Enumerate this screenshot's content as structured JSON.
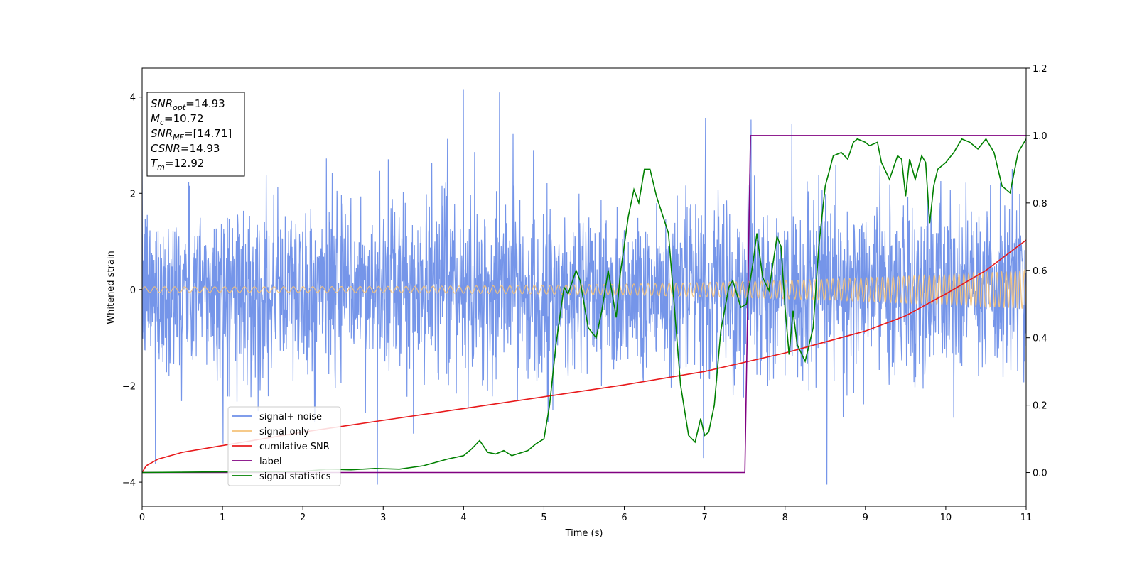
{
  "chart_data": {
    "type": "line",
    "xlabel": "Time (s)",
    "ylabel": "Whitened strain",
    "xlim": [
      0,
      11
    ],
    "ylim": [
      -4.5,
      4.6
    ],
    "y2lim": [
      -0.1,
      1.2
    ],
    "xticks": [
      "0",
      "1",
      "2",
      "3",
      "4",
      "5",
      "6",
      "7",
      "8",
      "9",
      "10",
      "11"
    ],
    "yticks": [
      "−4",
      "−2",
      "0",
      "2",
      "4"
    ],
    "y2ticks": [
      "0.0",
      "0.2",
      "0.4",
      "0.6",
      "0.8",
      "1.0",
      "1.2"
    ],
    "stats_box": [
      {
        "base": "SNR",
        "sub": "opt",
        "value": "=14.93"
      },
      {
        "base": "M",
        "sub": "c",
        "value": "=10.72"
      },
      {
        "base": "SNR",
        "sub": "MF",
        "value": "=[14.71]"
      },
      {
        "base": "CSNR",
        "sub": "",
        "value": "=14.93"
      },
      {
        "base": "T",
        "sub": "m",
        "value": "=12.92"
      }
    ],
    "legend_position": "lower-left",
    "series": [
      {
        "name": "signal+ noise",
        "color": "#6e8fe8",
        "axis": "left",
        "description_values": {
          "amplitude_std": 0.9,
          "min": -4.05,
          "max": 4.15
        }
      },
      {
        "name": "signal only",
        "color": "#f5c27a",
        "axis": "left",
        "chirp": {
          "amp_start": 0.06,
          "amp_end": 0.4,
          "freq_start_hz": 8,
          "freq_end_hz": 18
        }
      },
      {
        "name": "cumilative SNR",
        "color": "#e8191b",
        "axis": "right",
        "x": [
          0,
          0.05,
          0.2,
          0.5,
          1,
          2,
          3,
          4,
          5,
          6,
          7,
          8,
          9,
          9.5,
          10,
          10.5,
          11
        ],
        "y": [
          0.0,
          0.02,
          0.04,
          0.06,
          0.08,
          0.12,
          0.155,
          0.19,
          0.225,
          0.26,
          0.3,
          0.355,
          0.42,
          0.465,
          0.53,
          0.6,
          0.69
        ]
      },
      {
        "name": "label",
        "color": "#800080",
        "axis": "right",
        "x": [
          0,
          7.5,
          7.57,
          11
        ],
        "y": [
          0,
          0,
          1,
          1
        ]
      },
      {
        "name": "signal statistics",
        "color": "#008000",
        "axis": "right",
        "x": [
          0,
          0.5,
          1.0,
          1.5,
          2.0,
          2.3,
          2.6,
          2.9,
          3.2,
          3.5,
          3.8,
          4.0,
          4.1,
          4.2,
          4.3,
          4.4,
          4.5,
          4.6,
          4.8,
          4.9,
          5.0,
          5.07,
          5.15,
          5.25,
          5.3,
          5.4,
          5.45,
          5.55,
          5.65,
          5.72,
          5.8,
          5.9,
          5.95,
          6.05,
          6.12,
          6.18,
          6.25,
          6.32,
          6.4,
          6.55,
          6.7,
          6.8,
          6.88,
          6.95,
          7.0,
          7.05,
          7.12,
          7.2,
          7.3,
          7.35,
          7.45,
          7.52,
          7.6,
          7.65,
          7.72,
          7.8,
          7.9,
          7.95,
          8.0,
          8.05,
          8.1,
          8.15,
          8.25,
          8.35,
          8.42,
          8.5,
          8.6,
          8.7,
          8.78,
          8.85,
          8.9,
          9.0,
          9.05,
          9.15,
          9.2,
          9.3,
          9.4,
          9.45,
          9.5,
          9.55,
          9.62,
          9.7,
          9.75,
          9.8,
          9.85,
          9.9,
          10.0,
          10.1,
          10.2,
          10.3,
          10.4,
          10.5,
          10.6,
          10.7,
          10.8,
          10.9,
          11.0
        ],
        "y": [
          0.0,
          0.001,
          0.002,
          0.002,
          0.003,
          0.01,
          0.008,
          0.012,
          0.01,
          0.02,
          0.04,
          0.05,
          0.07,
          0.095,
          0.06,
          0.055,
          0.065,
          0.05,
          0.065,
          0.085,
          0.1,
          0.2,
          0.38,
          0.55,
          0.53,
          0.6,
          0.57,
          0.43,
          0.4,
          0.48,
          0.6,
          0.46,
          0.59,
          0.76,
          0.84,
          0.8,
          0.9,
          0.9,
          0.82,
          0.71,
          0.26,
          0.11,
          0.09,
          0.16,
          0.11,
          0.12,
          0.2,
          0.42,
          0.55,
          0.57,
          0.49,
          0.5,
          0.62,
          0.71,
          0.58,
          0.54,
          0.7,
          0.67,
          0.49,
          0.35,
          0.48,
          0.38,
          0.33,
          0.43,
          0.67,
          0.85,
          0.94,
          0.95,
          0.93,
          0.98,
          0.99,
          0.98,
          0.97,
          0.98,
          0.92,
          0.87,
          0.94,
          0.93,
          0.82,
          0.93,
          0.87,
          0.94,
          0.92,
          0.74,
          0.85,
          0.9,
          0.92,
          0.95,
          0.99,
          0.98,
          0.96,
          0.99,
          0.95,
          0.85,
          0.83,
          0.95,
          0.99
        ]
      }
    ]
  }
}
